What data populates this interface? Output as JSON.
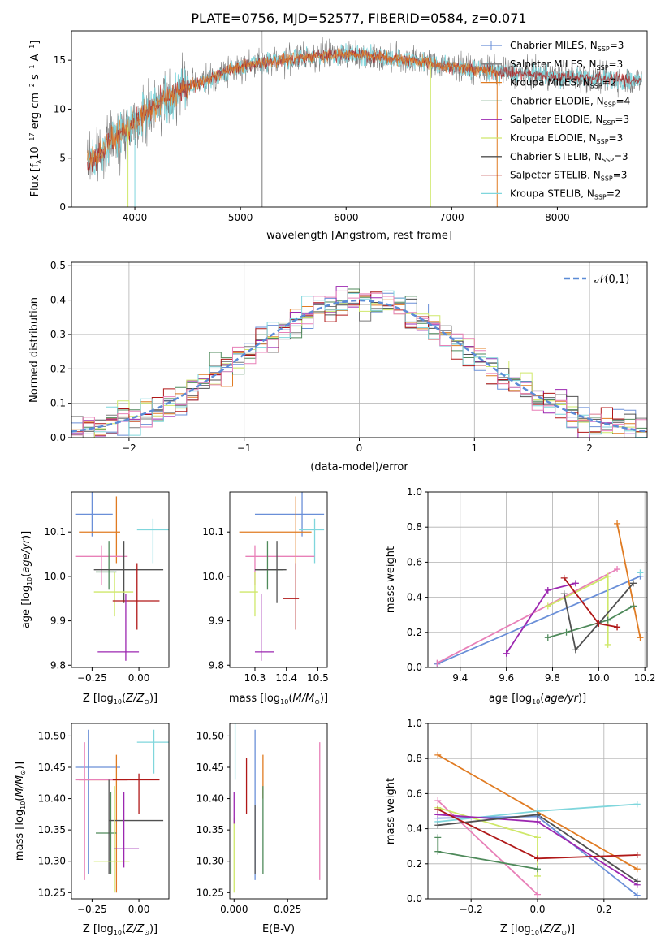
{
  "figure_title": "PLATE=0756, MJD=52577, FIBERID=0584, z=0.071",
  "colors": {
    "Chabrier MILES": "#6a8fd8",
    "Salpeter MILES": "#7a7a7a",
    "Kroupa MILES": "#e07b22",
    "Chabrier ELODIE": "#4f8a5b",
    "Salpeter ELODIE": "#9c27b0",
    "Kroupa ELODIE": "#cfe86a",
    "Chabrier STELIB": "#505050",
    "Salpeter STELIB": "#b01818",
    "Kroupa STELIB": "#7fd6dc",
    "pink": "#e880b8"
  },
  "chart_data": [
    {
      "id": "spectrum",
      "type": "line",
      "xlabel": "wavelength [Angstrom, rest frame]",
      "ylabel": "Flux [f",
      "xlim": [
        3400,
        8850
      ],
      "ylim": [
        0,
        18
      ],
      "xticks": [
        4000,
        5000,
        6000,
        7000,
        8000
      ],
      "yticks": [
        0,
        5,
        10,
        15
      ],
      "legend": {
        "placement": "top-right",
        "entries": [
          {
            "name": "Chabrier MILES",
            "nssp": "3"
          },
          {
            "name": "Salpeter MILES",
            "nssp": "3"
          },
          {
            "name": "Kroupa MILES",
            "nssp": "2"
          },
          {
            "name": "Chabrier ELODIE",
            "nssp": "4"
          },
          {
            "name": "Salpeter ELODIE",
            "nssp": "3"
          },
          {
            "name": "Kroupa ELODIE",
            "nssp": "3"
          },
          {
            "name": "Chabrier STELIB",
            "nssp": "3"
          },
          {
            "name": "Salpeter STELIB",
            "nssp": "3"
          },
          {
            "name": "Kroupa STELIB",
            "nssp": "2"
          }
        ]
      },
      "continuum": [
        [
          3550,
          4.5
        ],
        [
          3700,
          6.0
        ],
        [
          3900,
          7.8
        ],
        [
          4100,
          9.5
        ],
        [
          4300,
          11.0
        ],
        [
          4500,
          12.2
        ],
        [
          4700,
          13.1
        ],
        [
          4900,
          14.0
        ],
        [
          5100,
          14.6
        ],
        [
          5300,
          14.9
        ],
        [
          5500,
          15.1
        ],
        [
          5700,
          15.4
        ],
        [
          5900,
          15.6
        ],
        [
          6100,
          15.6
        ],
        [
          6300,
          15.4
        ],
        [
          6500,
          15.1
        ],
        [
          6700,
          14.9
        ],
        [
          6900,
          14.5
        ],
        [
          7100,
          14.2
        ],
        [
          7300,
          14.0
        ],
        [
          7500,
          13.8
        ],
        [
          7700,
          13.6
        ],
        [
          7900,
          13.4
        ],
        [
          8100,
          13.3
        ],
        [
          8300,
          13.2
        ],
        [
          8500,
          13.1
        ],
        [
          8800,
          12.9
        ]
      ]
    },
    {
      "id": "residuals",
      "type": "line",
      "xlabel": "(data-model)/error",
      "ylabel": "Normed distribution",
      "xlim": [
        -2.5,
        2.5
      ],
      "ylim": [
        0,
        0.51
      ],
      "xticks": [
        -2,
        -1,
        0,
        1,
        2
      ],
      "yticks": [
        0.0,
        0.1,
        0.2,
        0.3,
        0.4,
        0.5
      ],
      "legend": {
        "placement": "top-right",
        "entries": [
          {
            "name": "𝒩(0,1)"
          }
        ]
      },
      "grid": true
    },
    {
      "id": "age_vs_Z",
      "type": "scatter",
      "xlabel": "Z [log",
      "ylabel": "age  [log",
      "xlim": [
        -0.36,
        0.16
      ],
      "ylim": [
        9.795,
        10.19
      ],
      "xticks": [
        -0.25,
        0.0
      ],
      "yticks": [
        9.8,
        9.9,
        10.0,
        10.1
      ],
      "points": [
        {
          "c": "Chabrier MILES",
          "x": -0.25,
          "y": 10.14,
          "xe": [
            -0.34,
            -0.14
          ],
          "ye": [
            10.09,
            10.19
          ]
        },
        {
          "c": "Kroupa MILES",
          "x": -0.12,
          "y": 10.1,
          "xe": [
            -0.32,
            -0.1
          ],
          "ye": [
            10.03,
            10.18
          ]
        },
        {
          "c": "Kroupa STELIB",
          "x": 0.075,
          "y": 10.105,
          "xe": [
            -0.01,
            0.16
          ],
          "ye": [
            10.03,
            10.13
          ]
        },
        {
          "c": "pink",
          "x": -0.2,
          "y": 10.045,
          "xe": [
            -0.34,
            -0.06
          ],
          "ye": [
            9.98,
            10.07
          ]
        },
        {
          "c": "Chabrier ELODIE",
          "x": -0.16,
          "y": 10.01,
          "xe": [
            -0.23,
            -0.12
          ],
          "ye": [
            9.97,
            10.08
          ]
        },
        {
          "c": "Chabrier STELIB",
          "x": -0.08,
          "y": 10.015,
          "xe": [
            -0.24,
            0.13
          ],
          "ye": [
            9.94,
            10.08
          ]
        },
        {
          "c": "Kroupa ELODIE",
          "x": -0.13,
          "y": 9.965,
          "xe": [
            -0.24,
            -0.03
          ],
          "ye": [
            9.91,
            10.01
          ]
        },
        {
          "c": "Salpeter STELIB",
          "x": -0.01,
          "y": 9.945,
          "xe": [
            -0.14,
            0.11
          ],
          "ye": [
            9.88,
            10.03
          ]
        },
        {
          "c": "Salpeter ELODIE",
          "x": -0.07,
          "y": 9.83,
          "xe": [
            -0.22,
            0.0
          ],
          "ye": [
            9.81,
            9.96
          ]
        }
      ]
    },
    {
      "id": "age_vs_mass",
      "type": "scatter",
      "xlabel": "mass [log",
      "ylabel": "",
      "xlim": [
        10.22,
        10.53
      ],
      "ylim": [
        9.795,
        10.19
      ],
      "xticks": [
        10.3,
        10.4,
        10.5
      ],
      "yticks": [
        9.8,
        9.9,
        10.0,
        10.1
      ],
      "points": [
        {
          "c": "Chabrier MILES",
          "x": 10.45,
          "y": 10.14,
          "xe": [
            10.3,
            10.52
          ],
          "ye": [
            10.09,
            10.19
          ]
        },
        {
          "c": "Kroupa MILES",
          "x": 10.43,
          "y": 10.1,
          "xe": [
            10.25,
            10.48
          ],
          "ye": [
            10.03,
            10.18
          ]
        },
        {
          "c": "Kroupa STELIB",
          "x": 10.49,
          "y": 10.105,
          "xe": [
            10.44,
            10.52
          ],
          "ye": [
            10.03,
            10.13
          ]
        },
        {
          "c": "pink",
          "x": 10.3,
          "y": 10.045,
          "xe": [
            10.27,
            10.49
          ],
          "ye": [
            9.98,
            10.07
          ]
        },
        {
          "c": "Chabrier ELODIE",
          "x": 10.34,
          "y": 10.015,
          "xe": [
            10.3,
            10.39
          ],
          "ye": [
            9.97,
            10.08
          ]
        },
        {
          "c": "Chabrier STELIB",
          "x": 10.37,
          "y": 10.015,
          "xe": [
            10.3,
            10.4
          ],
          "ye": [
            9.94,
            10.08
          ]
        },
        {
          "c": "Kroupa ELODIE",
          "x": 10.3,
          "y": 9.965,
          "xe": [
            10.25,
            10.31
          ],
          "ye": [
            9.91,
            10.01
          ]
        },
        {
          "c": "Salpeter STELIB",
          "x": 10.43,
          "y": 9.95,
          "xe": [
            10.39,
            10.44
          ],
          "ye": [
            9.88,
            10.03
          ]
        },
        {
          "c": "Salpeter ELODIE",
          "x": 10.32,
          "y": 9.83,
          "xe": [
            10.3,
            10.36
          ],
          "ye": [
            9.81,
            9.96
          ]
        }
      ]
    },
    {
      "id": "weight_vs_age",
      "type": "line",
      "xlabel": "age  [log",
      "ylabel": "mass weight",
      "xlim": [
        9.26,
        10.21
      ],
      "ylim": [
        0,
        1.0
      ],
      "xticks": [
        9.4,
        9.6,
        9.8,
        10.0,
        10.2
      ],
      "yticks": [
        0.0,
        0.2,
        0.4,
        0.6,
        0.8,
        1.0
      ],
      "grid": true,
      "series": [
        {
          "c": "Chabrier MILES",
          "x": [
            9.3,
            10.18
          ],
          "y": [
            0.02,
            0.52
          ]
        },
        {
          "c": "pink",
          "x": [
            9.3,
            10.08
          ],
          "y": [
            0.025,
            0.56
          ]
        },
        {
          "c": "Kroupa STELIB",
          "x": [
            10.18
          ],
          "y": [
            0.54
          ]
        },
        {
          "c": "Kroupa MILES",
          "x": [
            10.08,
            10.18
          ],
          "y": [
            0.82,
            0.17
          ]
        },
        {
          "c": "Salpeter ELODIE",
          "x": [
            9.6,
            9.78,
            9.9
          ],
          "y": [
            0.08,
            0.44,
            0.48
          ]
        },
        {
          "c": "Kroupa ELODIE",
          "x": [
            9.78,
            10.04,
            10.04
          ],
          "y": [
            0.35,
            0.52,
            0.13
          ]
        },
        {
          "c": "Chabrier ELODIE",
          "x": [
            9.78,
            9.86,
            10.04,
            10.15
          ],
          "y": [
            0.17,
            0.2,
            0.27,
            0.35
          ]
        },
        {
          "c": "Chabrier STELIB",
          "x": [
            9.85,
            9.9,
            10.0,
            10.15
          ],
          "y": [
            0.42,
            0.1,
            0.25,
            0.48
          ]
        },
        {
          "c": "Salpeter STELIB",
          "x": [
            9.85,
            10.0,
            10.08
          ],
          "y": [
            0.51,
            0.25,
            0.23
          ]
        }
      ]
    },
    {
      "id": "mass_vs_Z",
      "type": "scatter",
      "xlabel": "Z [log",
      "ylabel": "mass [log",
      "xlim": [
        -0.36,
        0.16
      ],
      "ylim": [
        10.24,
        10.52
      ],
      "xticks": [
        -0.25,
        0.0
      ],
      "yticks": [
        10.25,
        10.3,
        10.35,
        10.4,
        10.45,
        10.5
      ],
      "points": [
        {
          "c": "Chabrier MILES",
          "x": -0.27,
          "y": 10.45,
          "xe": [
            -0.34,
            -0.1
          ],
          "ye": [
            10.28,
            10.51
          ]
        },
        {
          "c": "Kroupa MILES",
          "x": -0.12,
          "y": 10.43,
          "xe": [
            -0.32,
            -0.06
          ],
          "ye": [
            10.25,
            10.47
          ]
        },
        {
          "c": "Kroupa STELIB",
          "x": 0.08,
          "y": 10.49,
          "xe": [
            -0.01,
            0.16
          ],
          "ye": [
            10.44,
            10.51
          ]
        },
        {
          "c": "pink",
          "x": -0.29,
          "y": 10.43,
          "xe": [
            -0.34,
            -0.06
          ],
          "ye": [
            10.27,
            10.49
          ]
        },
        {
          "c": "Chabrier ELODIE",
          "x": -0.15,
          "y": 10.345,
          "xe": [
            -0.23,
            -0.12
          ],
          "ye": [
            10.28,
            10.41
          ]
        },
        {
          "c": "Chabrier STELIB",
          "x": -0.16,
          "y": 10.365,
          "xe": [
            -0.16,
            0.13
          ],
          "ye": [
            10.28,
            10.43
          ]
        },
        {
          "c": "Kroupa ELODIE",
          "x": -0.13,
          "y": 10.3,
          "xe": [
            -0.24,
            -0.05
          ],
          "ye": [
            10.25,
            10.42
          ]
        },
        {
          "c": "Salpeter STELIB",
          "x": 0.0,
          "y": 10.43,
          "xe": [
            -0.14,
            0.11
          ],
          "ye": [
            10.375,
            10.44
          ]
        },
        {
          "c": "Salpeter ELODIE",
          "x": -0.08,
          "y": 10.32,
          "xe": [
            -0.13,
            0.0
          ],
          "ye": [
            10.29,
            10.41
          ]
        }
      ]
    },
    {
      "id": "mass_vs_ebv",
      "type": "scatter",
      "xlabel": "E(B-V)",
      "ylabel": "",
      "xlim": [
        -0.002,
        0.0435
      ],
      "ylim": [
        10.24,
        10.52
      ],
      "xticks": [
        0.0,
        0.025
      ],
      "yticks": [
        10.25,
        10.3,
        10.35,
        10.4,
        10.45,
        10.5
      ],
      "vlines": [
        {
          "c": "Kroupa ELODIE",
          "x": 0.0,
          "y": [
            10.25,
            10.37
          ]
        },
        {
          "c": "Salpeter ELODIE",
          "x": 0.0,
          "y": [
            10.36,
            10.41
          ]
        },
        {
          "c": "Kroupa STELIB",
          "x": 0.0005,
          "y": [
            10.43,
            10.52
          ]
        },
        {
          "c": "Salpeter STELIB",
          "x": 0.0058,
          "y": [
            10.375,
            10.465
          ]
        },
        {
          "c": "Chabrier MILES",
          "x": 0.0098,
          "y": [
            10.27,
            10.51
          ]
        },
        {
          "c": "Chabrier STELIB",
          "x": 0.0098,
          "y": [
            10.28,
            10.39
          ]
        },
        {
          "c": "Kroupa MILES",
          "x": 0.0135,
          "y": [
            10.4,
            10.47
          ]
        },
        {
          "c": "Chabrier ELODIE",
          "x": 0.0135,
          "y": [
            10.28,
            10.42
          ]
        },
        {
          "c": "pink",
          "x": 0.04,
          "y": [
            10.27,
            10.49
          ]
        }
      ]
    },
    {
      "id": "weight_vs_Z",
      "type": "line",
      "xlabel": "Z [log",
      "ylabel": "mass weight",
      "xlim": [
        -0.33,
        0.33
      ],
      "ylim": [
        0,
        1.0
      ],
      "xticks": [
        -0.2,
        0.0,
        0.2
      ],
      "yticks": [
        0.0,
        0.2,
        0.4,
        0.6,
        0.8,
        1.0
      ],
      "grid": true,
      "series": [
        {
          "c": "Kroupa MILES",
          "x": [
            -0.3,
            0.3
          ],
          "y": [
            0.82,
            0.17
          ]
        },
        {
          "c": "pink",
          "x": [
            -0.3,
            0.0
          ],
          "y": [
            0.56,
            0.025
          ]
        },
        {
          "c": "Kroupa STELIB",
          "x": [
            -0.3,
            0.0,
            0.3
          ],
          "y": [
            0.44,
            0.5,
            0.54
          ]
        },
        {
          "c": "Chabrier MILES",
          "x": [
            -0.3,
            0.0,
            0.3
          ],
          "y": [
            0.46,
            0.47,
            0.02
          ]
        },
        {
          "c": "Kroupa ELODIE",
          "x": [
            -0.3,
            0.0,
            0.0
          ],
          "y": [
            0.52,
            0.35,
            0.13
          ]
        },
        {
          "c": "Salpeter ELODIE",
          "x": [
            -0.3,
            0.0,
            0.3
          ],
          "y": [
            0.48,
            0.44,
            0.08
          ]
        },
        {
          "c": "Chabrier STELIB",
          "x": [
            -0.3,
            0.0,
            0.3
          ],
          "y": [
            0.42,
            0.48,
            0.1
          ]
        },
        {
          "c": "Salpeter STELIB",
          "x": [
            -0.3,
            0.0,
            0.3
          ],
          "y": [
            0.51,
            0.23,
            0.25
          ]
        },
        {
          "c": "Chabrier ELODIE",
          "x": [
            -0.3,
            -0.3,
            0.0
          ],
          "y": [
            0.35,
            0.27,
            0.17
          ]
        }
      ]
    }
  ]
}
